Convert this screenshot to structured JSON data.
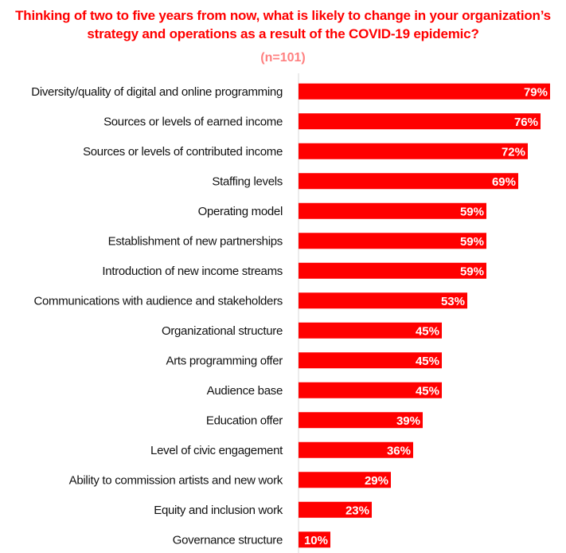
{
  "chart_data": {
    "type": "bar",
    "orientation": "horizontal",
    "title": "Thinking of two to five years from now, what is likely to change in your organization’s strategy and operations as a result of the COVID-19 epidemic?",
    "subtitle": "(n=101)",
    "categories": [
      "Diversity/quality of digital and online programming",
      "Sources or levels of earned income",
      "Sources or levels of contributed income",
      "Staffing levels",
      "Operating model",
      "Establishment of new partnerships",
      "Introduction of new income streams",
      "Communications with audience and stakeholders",
      "Organizational structure",
      "Arts programming offer",
      "Audience base",
      "Education offer",
      "Level of civic engagement",
      "Ability to commission artists and new work",
      "Equity and inclusion work",
      "Governance structure"
    ],
    "values": [
      79,
      76,
      72,
      69,
      59,
      59,
      59,
      53,
      45,
      45,
      45,
      39,
      36,
      29,
      23,
      10
    ],
    "value_labels": [
      "79%",
      "76%",
      "72%",
      "69%",
      "59%",
      "59%",
      "59%",
      "53%",
      "45%",
      "45%",
      "45%",
      "39%",
      "36%",
      "29%",
      "23%",
      "10%"
    ],
    "xlim": [
      0,
      100
    ],
    "grid": false,
    "legend": "none",
    "colors": {
      "bar": "#ff0000",
      "title": "#ff0000",
      "subtitle": "#ff8080",
      "axis": "#d9d9d9",
      "value_label": "#ffffff"
    }
  }
}
